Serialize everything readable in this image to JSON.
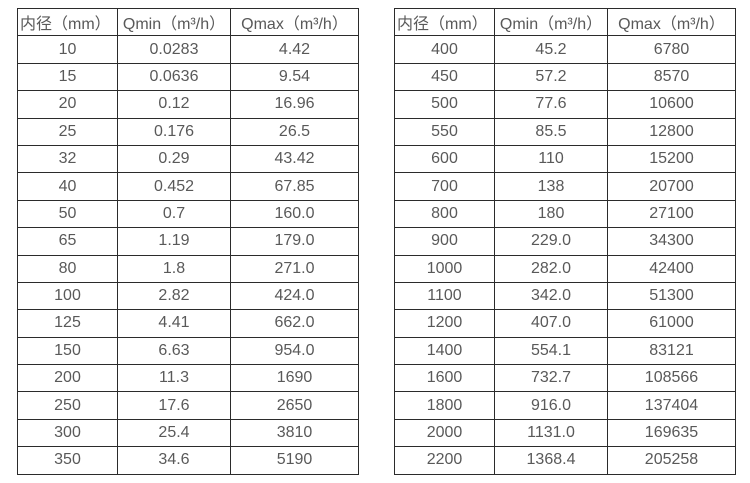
{
  "page": {
    "background_color": "#ffffff",
    "text_color": "#595959",
    "border_color": "#2b2b2b"
  },
  "tables": [
    {
      "name": "flow-spec-table-small-diameters",
      "headers": [
        "内径（mm）",
        "Qmin（m³/h）",
        "Qmax（m³/h）"
      ],
      "rows": [
        [
          "10",
          "0.0283",
          "4.42"
        ],
        [
          "15",
          "0.0636",
          "9.54"
        ],
        [
          "20",
          "0.12",
          "16.96"
        ],
        [
          "25",
          "0.176",
          "26.5"
        ],
        [
          "32",
          "0.29",
          "43.42"
        ],
        [
          "40",
          "0.452",
          "67.85"
        ],
        [
          "50",
          "0.7",
          "160.0"
        ],
        [
          "65",
          "1.19",
          "179.0"
        ],
        [
          "80",
          "1.8",
          "271.0"
        ],
        [
          "100",
          "2.82",
          "424.0"
        ],
        [
          "125",
          "4.41",
          "662.0"
        ],
        [
          "150",
          "6.63",
          "954.0"
        ],
        [
          "200",
          "11.3",
          "1690"
        ],
        [
          "250",
          "17.6",
          "2650"
        ],
        [
          "300",
          "25.4",
          "3810"
        ],
        [
          "350",
          "34.6",
          "5190"
        ]
      ]
    },
    {
      "name": "flow-spec-table-large-diameters",
      "headers": [
        "内径（mm）",
        "Qmin（m³/h）",
        "Qmax（m³/h）"
      ],
      "rows": [
        [
          "400",
          "45.2",
          "6780"
        ],
        [
          "450",
          "57.2",
          "8570"
        ],
        [
          "500",
          "77.6",
          "10600"
        ],
        [
          "550",
          "85.5",
          "12800"
        ],
        [
          "600",
          "110",
          "15200"
        ],
        [
          "700",
          "138",
          "20700"
        ],
        [
          "800",
          "180",
          "27100"
        ],
        [
          "900",
          "229.0",
          "34300"
        ],
        [
          "1000",
          "282.0",
          "42400"
        ],
        [
          "1100",
          "342.0",
          "51300"
        ],
        [
          "1200",
          "407.0",
          "61000"
        ],
        [
          "1400",
          "554.1",
          "83121"
        ],
        [
          "1600",
          "732.7",
          "108566"
        ],
        [
          "1800",
          "916.0",
          "137404"
        ],
        [
          "2000",
          "1131.0",
          "169635"
        ],
        [
          "2200",
          "1368.4",
          "205258"
        ]
      ]
    }
  ]
}
